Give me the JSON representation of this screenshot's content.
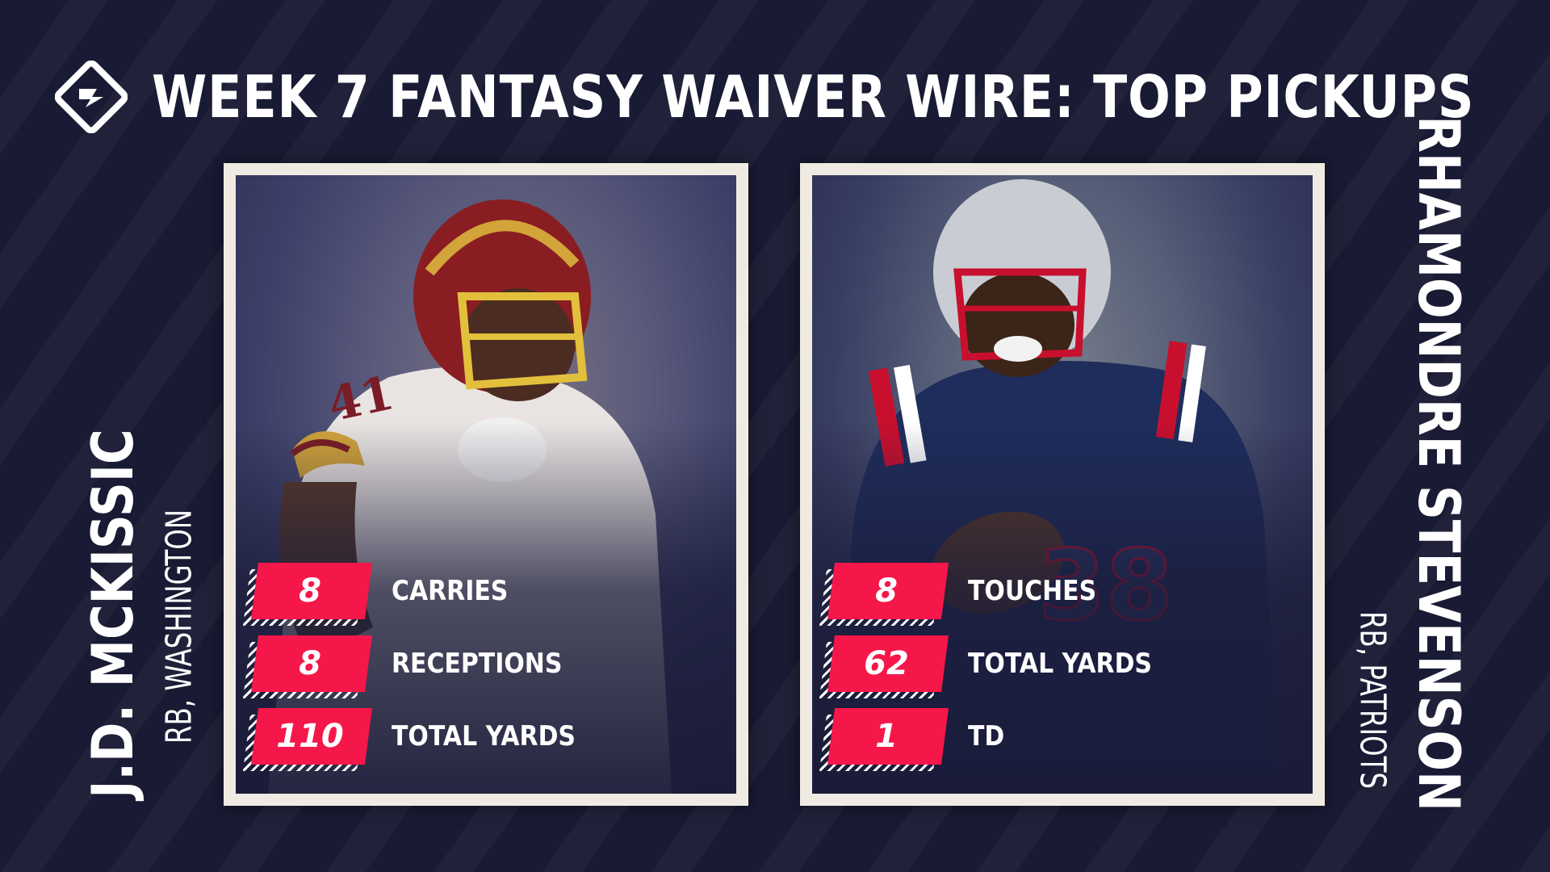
{
  "header": {
    "logo_icon": "sporting-news-logo-icon",
    "title": "WEEK 7 FANTASY WAIVER WIRE: TOP PICKUPS"
  },
  "colors": {
    "background": "#191a33",
    "badge": "#f5174a",
    "card_border": "#efebe2",
    "text": "#ffffff"
  },
  "players": [
    {
      "name": "J.D. MCKISSIC",
      "position_team": "RB, WASHINGTON",
      "jersey": "41",
      "stats": [
        {
          "value": "8",
          "label": "CARRIES"
        },
        {
          "value": "8",
          "label": "RECEPTIONS"
        },
        {
          "value": "110",
          "label": "TOTAL YARDS"
        }
      ]
    },
    {
      "name": "RHAMONDRE STEVENSON",
      "position_team": "RB, PATRIOTS",
      "jersey": "38",
      "stats": [
        {
          "value": "8",
          "label": "TOUCHES"
        },
        {
          "value": "62",
          "label": "TOTAL YARDS"
        },
        {
          "value": "1",
          "label": "TD"
        }
      ]
    }
  ]
}
